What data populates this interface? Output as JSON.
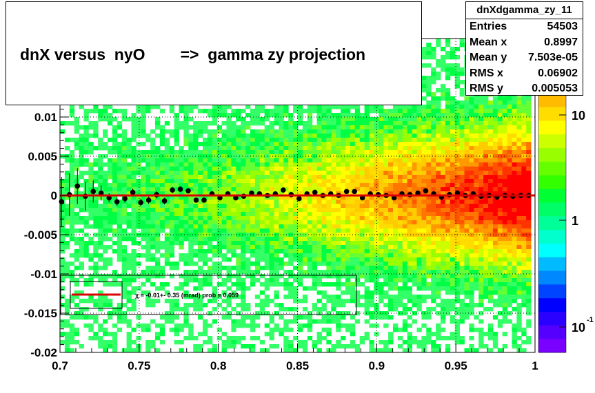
{
  "title": "dnX versus  nyO        =>  gamma zy projection",
  "stats": {
    "name": "dnXdgamma_zy_11",
    "rows": [
      {
        "label": "Entries",
        "value": "54503"
      },
      {
        "label": "Mean x",
        "value": "0.8997"
      },
      {
        "label": "Mean y",
        "value": "7.503e-05"
      },
      {
        "label": "RMS x",
        "value": "0.06902"
      },
      {
        "label": "RMS y",
        "value": "0.005053"
      }
    ]
  },
  "legend": {
    "text": "χ =   -0.01+- 0.35 (mrad) prob = 0.059"
  },
  "chart_data": {
    "type": "heatmap",
    "xlim": [
      0.7,
      1.0
    ],
    "ylim": [
      -0.02,
      0.02
    ],
    "x_ticks": [
      "0.7",
      "0.75",
      "0.8",
      "0.85",
      "0.9",
      "0.95",
      "1"
    ],
    "y_ticks": [
      "0.01",
      "0.005",
      "0",
      "-0.005",
      "-0.01",
      "-0.015",
      "-0.02"
    ],
    "z_scale": "log",
    "z_ticks": [
      "10",
      "1",
      "10"
    ],
    "z_tick_exponent": "-1",
    "grid": true,
    "colors": {
      "hot": "#ff0000",
      "warm": "#ff9900",
      "mid": "#ffff00",
      "cool": "#00ff66",
      "profile": "#000000",
      "fit": "#dd0000"
    },
    "fit_line": {
      "x": [
        0.7,
        1.0
      ],
      "y": [
        0.0,
        0.0
      ]
    },
    "profile_points": [
      {
        "x": 0.701,
        "y": -0.0008
      },
      {
        "x": 0.706,
        "y": 0.0001
      },
      {
        "x": 0.711,
        "y": 0.0012
      },
      {
        "x": 0.716,
        "y": -0.0001
      },
      {
        "x": 0.721,
        "y": 0.0005
      },
      {
        "x": 0.726,
        "y": 0.0003
      },
      {
        "x": 0.731,
        "y": -0.0003
      },
      {
        "x": 0.736,
        "y": -0.0008
      },
      {
        "x": 0.741,
        "y": -0.0004
      },
      {
        "x": 0.746,
        "y": 0.0004
      },
      {
        "x": 0.751,
        "y": -0.0009
      },
      {
        "x": 0.756,
        "y": -0.0006
      },
      {
        "x": 0.761,
        "y": 0.0001
      },
      {
        "x": 0.766,
        "y": -0.0007
      },
      {
        "x": 0.771,
        "y": 0.0007
      },
      {
        "x": 0.776,
        "y": 0.0008
      },
      {
        "x": 0.781,
        "y": 0.0006
      },
      {
        "x": 0.786,
        "y": -0.0006
      },
      {
        "x": 0.791,
        "y": -0.0006
      },
      {
        "x": 0.796,
        "y": 0.0002
      },
      {
        "x": 0.801,
        "y": -0.0003
      },
      {
        "x": 0.806,
        "y": 0.0002
      },
      {
        "x": 0.811,
        "y": -0.0003
      },
      {
        "x": 0.816,
        "y": -0.0001
      },
      {
        "x": 0.821,
        "y": 0.0003
      },
      {
        "x": 0.826,
        "y": 0.0002
      },
      {
        "x": 0.831,
        "y": 0.0
      },
      {
        "x": 0.836,
        "y": 0.0002
      },
      {
        "x": 0.841,
        "y": 0.0007
      },
      {
        "x": 0.846,
        "y": 0.0001
      },
      {
        "x": 0.851,
        "y": -0.0004
      },
      {
        "x": 0.856,
        "y": 0.0002
      },
      {
        "x": 0.861,
        "y": 0.0004
      },
      {
        "x": 0.866,
        "y": 0.0
      },
      {
        "x": 0.871,
        "y": 0.0002
      },
      {
        "x": 0.876,
        "y": 0.0
      },
      {
        "x": 0.881,
        "y": 0.0005
      },
      {
        "x": 0.886,
        "y": 0.0005
      },
      {
        "x": 0.891,
        "y": -0.0003
      },
      {
        "x": 0.896,
        "y": 0.0002
      },
      {
        "x": 0.901,
        "y": 0.0001
      },
      {
        "x": 0.906,
        "y": 0.0
      },
      {
        "x": 0.911,
        "y": -0.0003
      },
      {
        "x": 0.916,
        "y": 0.0002
      },
      {
        "x": 0.921,
        "y": 0.0001
      },
      {
        "x": 0.926,
        "y": 0.0003
      },
      {
        "x": 0.931,
        "y": 0.0006
      },
      {
        "x": 0.936,
        "y": 0.0002
      },
      {
        "x": 0.941,
        "y": -0.0002
      },
      {
        "x": 0.946,
        "y": 0.0001
      },
      {
        "x": 0.951,
        "y": 0.0003
      },
      {
        "x": 0.956,
        "y": 0.0
      },
      {
        "x": 0.961,
        "y": 0.0002
      },
      {
        "x": 0.966,
        "y": -0.0001
      },
      {
        "x": 0.971,
        "y": 0.0
      },
      {
        "x": 0.976,
        "y": -0.0002
      },
      {
        "x": 0.981,
        "y": 0.0
      },
      {
        "x": 0.986,
        "y": -0.0001
      },
      {
        "x": 0.991,
        "y": 0.0
      },
      {
        "x": 0.996,
        "y": 0.0
      }
    ]
  }
}
